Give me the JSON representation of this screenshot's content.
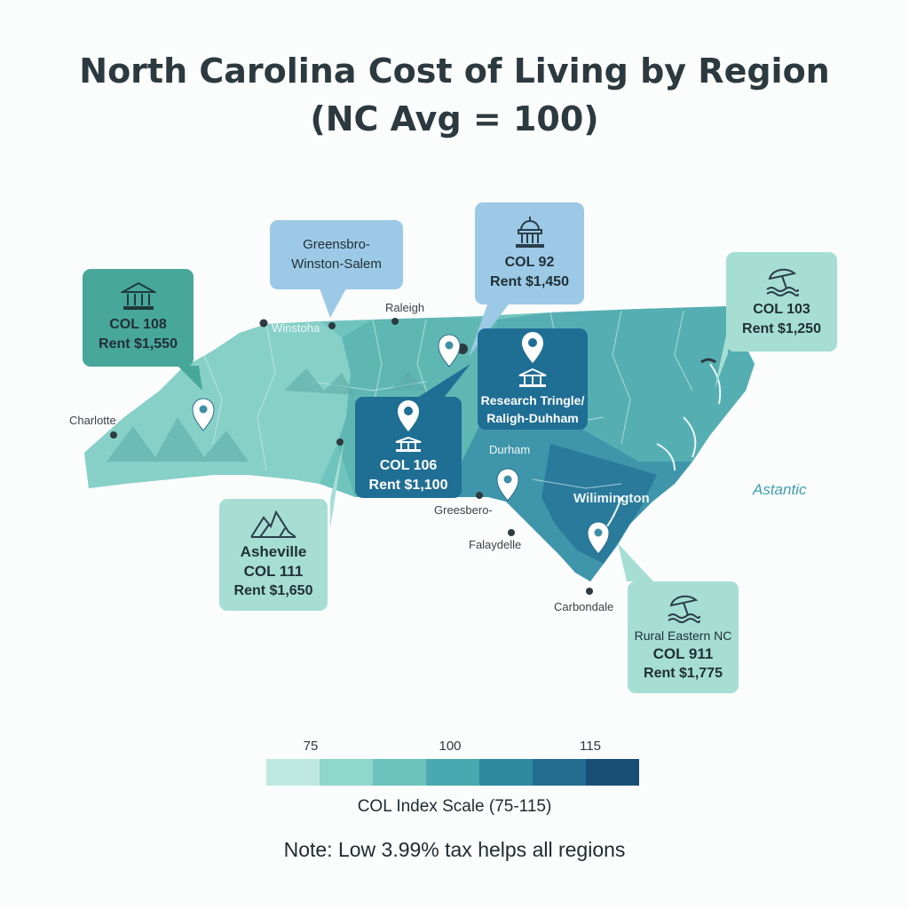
{
  "title": {
    "line1": "North Carolina Cost of Living by Region",
    "line2": "(NC Avg = 100)"
  },
  "cities": {
    "winston": "Winstoha",
    "raleigh": "Raleigh",
    "charlotte": "Charlotte",
    "durham": "Durham",
    "greensboro": "Greesbero-",
    "fayetteville": "Falaydelle",
    "carbondale": "Carbondale",
    "wilmington": "Wilimington",
    "ocean": "Astantic"
  },
  "callouts": {
    "greensboro_ws": {
      "name_line1": "Greensbro-",
      "name_line2": "Winston-Salem"
    },
    "charlotte": {
      "col": "COL 108",
      "rent": "Rent $1,550",
      "icon": "bank-icon"
    },
    "raleigh": {
      "col": "COL 92",
      "rent": "Rent $1,450",
      "icon": "capitol-dome-icon"
    },
    "coast": {
      "col": "COL 103",
      "rent": "Rent $1,250",
      "icon": "beach-umbrella-icon"
    },
    "triangle": {
      "name_line1": "Research Tringle/",
      "name_line2": "Raligh-Duhham",
      "icon": "building-icon"
    },
    "center": {
      "col": "COL 106",
      "rent": "Rent $1,100",
      "icon": "building-icon"
    },
    "asheville": {
      "name": "Asheville",
      "col": "COL 111",
      "rent": "Rent $1,650",
      "icon": "mountains-icon"
    },
    "rural_east": {
      "name": "Rural Eastern NC",
      "col": "COL 911",
      "rent": "Rent $1,775",
      "icon": "beach-umbrella-icon"
    }
  },
  "legend": {
    "ticks": [
      "75",
      "100",
      "115"
    ],
    "colors": [
      "#bfe9e0",
      "#8fd6cb",
      "#6cc3bd",
      "#4aa9b0",
      "#2f8aa0",
      "#246e91",
      "#1a4f75"
    ],
    "title": "COL Index Scale (75-115)"
  },
  "note": "Note: Low 3.99% tax helps all regions",
  "colors": {
    "map_light": "#8fd6cb",
    "map_mid": "#4aa9b0",
    "map_dark": "#1f6a8f",
    "callout_light": "#a6ded4",
    "callout_blue": "#9cc9e6",
    "callout_dark": "#1f6e94"
  }
}
